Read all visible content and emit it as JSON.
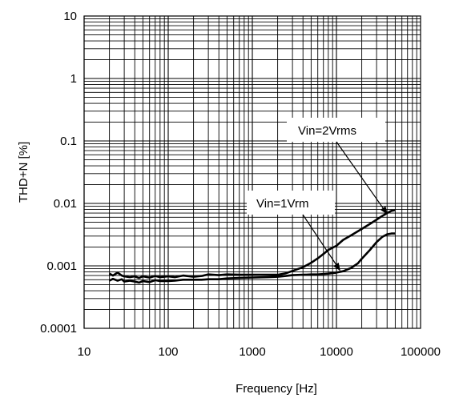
{
  "chart_data": {
    "type": "line",
    "title": "",
    "xlabel": "Frequency [Hz]",
    "ylabel": "THD+N [%]",
    "x_scale": "log",
    "y_scale": "log",
    "xlim": [
      10,
      100000
    ],
    "ylim": [
      0.0001,
      10
    ],
    "grid": true,
    "x_ticks": [
      "10",
      "100",
      "1000",
      "10000",
      "100000"
    ],
    "y_ticks": [
      "10",
      "1",
      "0.1",
      "0.01",
      "0.001",
      "0.0001"
    ],
    "series": [
      {
        "name": "Vin=2Vrms",
        "x": [
          20,
          22,
          25,
          28,
          30,
          35,
          40,
          45,
          50,
          60,
          70,
          80,
          100,
          120,
          150,
          200,
          250,
          300,
          400,
          500,
          700,
          1000,
          1500,
          2000,
          2500,
          3000,
          4000,
          5000,
          6000,
          7000,
          8000,
          10000,
          12000,
          15000,
          20000,
          25000,
          30000,
          35000,
          40000,
          45000,
          50000
        ],
        "values": [
          0.00075,
          0.0007,
          0.00078,
          0.0007,
          0.00068,
          0.00066,
          0.00068,
          0.00064,
          0.00068,
          0.00065,
          0.00069,
          0.00066,
          0.00068,
          0.00066,
          0.0007,
          0.00067,
          0.00069,
          0.00073,
          0.00071,
          0.00073,
          0.00072,
          0.00072,
          0.00072,
          0.00072,
          0.00076,
          0.00083,
          0.00095,
          0.00112,
          0.00132,
          0.00155,
          0.0018,
          0.0021,
          0.0026,
          0.0031,
          0.0039,
          0.0047,
          0.0055,
          0.0063,
          0.007,
          0.0076,
          0.0078
        ]
      },
      {
        "name": "Vin=1Vrm",
        "x": [
          20,
          22,
          25,
          28,
          30,
          35,
          40,
          45,
          50,
          60,
          70,
          80,
          100,
          120,
          150,
          200,
          250,
          300,
          400,
          500,
          700,
          1000,
          1500,
          2000,
          2500,
          3000,
          4000,
          5000,
          6000,
          7000,
          8000,
          10000,
          12000,
          15000,
          18000,
          20000,
          25000,
          30000,
          35000,
          40000,
          45000,
          50000
        ],
        "values": [
          0.00058,
          0.00062,
          0.00058,
          0.00061,
          0.00056,
          0.00058,
          0.00056,
          0.00054,
          0.00057,
          0.00055,
          0.00059,
          0.00057,
          0.00057,
          0.00058,
          0.0006,
          0.0006,
          0.0006,
          0.00061,
          0.00061,
          0.00063,
          0.00064,
          0.00065,
          0.00066,
          0.00067,
          0.00069,
          0.00071,
          0.00072,
          0.00073,
          0.00073,
          0.00074,
          0.00075,
          0.00078,
          0.00082,
          0.00093,
          0.0011,
          0.0013,
          0.0018,
          0.0024,
          0.0029,
          0.0032,
          0.0033,
          0.0033
        ]
      }
    ],
    "annotations": [
      {
        "text": "Vin=2Vrms",
        "points_to_series": "Vin=2Vrms",
        "arrow_target_x": 40000,
        "arrow_target_y": 0.0068
      },
      {
        "text": "Vin=1Vrm",
        "points_to_series": "Vin=1Vrm",
        "arrow_target_x": 11000,
        "arrow_target_y": 0.00085
      }
    ]
  }
}
